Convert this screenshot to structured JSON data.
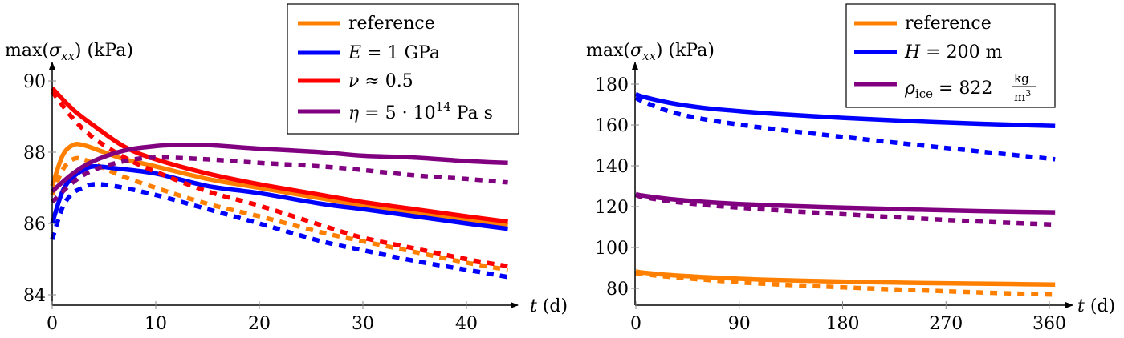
{
  "chart_data": [
    {
      "type": "line",
      "title": "",
      "ylabel": "max(σ_xx) (kPa)",
      "xlabel": "t (d)",
      "xlim": [
        0,
        44
      ],
      "ylim": [
        83.7,
        90.3
      ],
      "x_ticks": [
        0,
        10,
        20,
        30,
        40
      ],
      "y_ticks": [
        84,
        86,
        88,
        90
      ],
      "grid": false,
      "legend_position": "top-right",
      "legend_note": "solid and dashed lines share colour per case",
      "series": [
        {
          "name": "reference",
          "color": "#ff8000",
          "style": "solid",
          "show_in_legend": true,
          "x": [
            0,
            1,
            2,
            3,
            5,
            7,
            10,
            15,
            20,
            26,
            30,
            35,
            40,
            44
          ],
          "y": [
            87.05,
            87.9,
            88.2,
            88.2,
            88.0,
            87.8,
            87.6,
            87.25,
            87.0,
            86.7,
            86.5,
            86.3,
            86.1,
            85.95
          ]
        },
        {
          "name": "reference (dashed)",
          "color": "#ff8000",
          "style": "dashed",
          "show_in_legend": false,
          "x": [
            0,
            1,
            2,
            3,
            5,
            7,
            10,
            15,
            20,
            26,
            30,
            35,
            40,
            44
          ],
          "y": [
            86.8,
            87.5,
            87.8,
            87.8,
            87.55,
            87.3,
            87.0,
            86.55,
            86.2,
            85.75,
            85.5,
            85.2,
            84.9,
            84.7
          ]
        },
        {
          "name": "E = 1 GPa",
          "color": "#0000ff",
          "style": "solid",
          "show_in_legend": true,
          "x": [
            0,
            1,
            2,
            3,
            4,
            6,
            10,
            15,
            20,
            26,
            30,
            35,
            40,
            44
          ],
          "y": [
            86.0,
            86.9,
            87.3,
            87.5,
            87.6,
            87.55,
            87.4,
            87.05,
            86.85,
            86.55,
            86.4,
            86.2,
            86.0,
            85.85
          ]
        },
        {
          "name": "E = 1 GPa (dashed)",
          "color": "#0000ff",
          "style": "dashed",
          "show_in_legend": false,
          "x": [
            0,
            1,
            2,
            3,
            4,
            6,
            10,
            15,
            20,
            26,
            30,
            35,
            40,
            44
          ],
          "y": [
            85.55,
            86.45,
            86.85,
            87.0,
            87.1,
            87.05,
            86.8,
            86.4,
            86.0,
            85.5,
            85.25,
            84.95,
            84.7,
            84.5
          ]
        },
        {
          "name": "ν ≈ 0.5",
          "color": "#ff0000",
          "style": "solid",
          "show_in_legend": true,
          "x": [
            0,
            2,
            4,
            7,
            10,
            15,
            20,
            26,
            30,
            35,
            40,
            44
          ],
          "y": [
            89.8,
            89.2,
            88.75,
            88.15,
            87.8,
            87.4,
            87.1,
            86.8,
            86.6,
            86.4,
            86.2,
            86.05
          ]
        },
        {
          "name": "ν ≈ 0.5 (dashed)",
          "color": "#ff0000",
          "style": "dashed",
          "show_in_legend": false,
          "x": [
            0,
            2,
            4,
            7,
            10,
            15,
            20,
            26,
            30,
            35,
            40,
            44
          ],
          "y": [
            89.7,
            88.95,
            88.4,
            87.85,
            87.45,
            86.9,
            86.5,
            85.95,
            85.6,
            85.3,
            85.0,
            84.8
          ]
        },
        {
          "name": "η = 5·10^14 Pa s",
          "color": "#800080",
          "style": "solid",
          "show_in_legend": true,
          "x": [
            0,
            2,
            4,
            7,
            10,
            12,
            15,
            20,
            26,
            30,
            35,
            40,
            44
          ],
          "y": [
            86.9,
            87.4,
            87.75,
            88.05,
            88.17,
            88.2,
            88.2,
            88.1,
            88.0,
            87.9,
            87.85,
            87.75,
            87.7
          ]
        },
        {
          "name": "η = 5·10^14 Pa s (dashed)",
          "color": "#800080",
          "style": "dashed",
          "show_in_legend": false,
          "x": [
            0,
            2,
            4,
            7,
            10,
            15,
            20,
            26,
            30,
            35,
            40,
            44
          ],
          "y": [
            86.6,
            87.15,
            87.5,
            87.75,
            87.85,
            87.8,
            87.7,
            87.6,
            87.5,
            87.35,
            87.25,
            87.15
          ]
        }
      ],
      "legend_entries": [
        {
          "label": "reference",
          "color": "#ff8000"
        },
        {
          "label": "E = 1 GPa",
          "color": "#0000ff"
        },
        {
          "label": "ν ≈ 0.5",
          "color": "#ff0000"
        },
        {
          "label": "η = 5 · 10^14 Pa s",
          "color": "#800080"
        }
      ]
    },
    {
      "type": "line",
      "title": "",
      "ylabel": "max(σ_xx) (kPa)",
      "xlabel": "t (d)",
      "xlim": [
        0,
        365
      ],
      "ylim": [
        72,
        190
      ],
      "x_ticks": [
        0,
        90,
        180,
        270,
        360
      ],
      "y_ticks": [
        80,
        100,
        120,
        140,
        160,
        180
      ],
      "grid": false,
      "legend_position": "top-right",
      "series": [
        {
          "name": "reference",
          "color": "#ff8000",
          "style": "solid",
          "show_in_legend": true,
          "x": [
            0,
            5,
            30,
            60,
            90,
            120,
            180,
            240,
            300,
            365
          ],
          "y": [
            88.5,
            87.8,
            86.5,
            85.5,
            84.7,
            84.1,
            83.3,
            82.7,
            82.3,
            81.9
          ]
        },
        {
          "name": "reference (dashed)",
          "color": "#ff8000",
          "style": "dashed",
          "show_in_legend": false,
          "x": [
            0,
            5,
            30,
            60,
            90,
            120,
            180,
            240,
            300,
            365
          ],
          "y": [
            87.5,
            87.0,
            85.6,
            84.2,
            83.0,
            82.0,
            80.5,
            79.2,
            78.0,
            76.9
          ]
        },
        {
          "name": "H = 200 m",
          "color": "#0000ff",
          "style": "solid",
          "show_in_legend": true,
          "x": [
            0,
            5,
            30,
            60,
            90,
            120,
            180,
            240,
            300,
            365
          ],
          "y": [
            175.3,
            174.0,
            170.8,
            168.3,
            166.8,
            165.5,
            163.5,
            161.9,
            160.6,
            159.5
          ]
        },
        {
          "name": "H = 200 m (dashed)",
          "color": "#0000ff",
          "style": "dashed",
          "show_in_legend": false,
          "x": [
            0,
            5,
            30,
            60,
            90,
            120,
            180,
            240,
            300,
            365
          ],
          "y": [
            173.5,
            171.8,
            166.5,
            162.8,
            160.2,
            158.0,
            154.2,
            150.5,
            147.0,
            143.2
          ]
        },
        {
          "name": "ρ_ice = 822 kg/m³",
          "color": "#800080",
          "style": "solid",
          "show_in_legend": true,
          "x": [
            0,
            5,
            30,
            60,
            90,
            120,
            180,
            240,
            300,
            365
          ],
          "y": [
            126.3,
            125.5,
            123.7,
            122.3,
            121.3,
            120.6,
            119.5,
            118.6,
            117.8,
            117.2
          ]
        },
        {
          "name": "ρ_ice = 822 kg/m³ (dashed)",
          "color": "#800080",
          "style": "dashed",
          "show_in_legend": false,
          "x": [
            0,
            5,
            30,
            60,
            90,
            120,
            180,
            240,
            300,
            365
          ],
          "y": [
            125.8,
            124.8,
            122.6,
            120.8,
            119.5,
            118.3,
            116.3,
            114.4,
            112.7,
            111.2
          ]
        }
      ],
      "legend_entries": [
        {
          "label": "reference",
          "color": "#ff8000"
        },
        {
          "label": "H = 200 m",
          "color": "#0000ff"
        },
        {
          "label": "ρ_ice = 822 kg/m³",
          "color": "#800080"
        }
      ]
    }
  ],
  "labels": {
    "left": {
      "ylabel_prefix": "max(",
      "ylabel_sigma": "σ",
      "ylabel_sub": "xx",
      "ylabel_suffix": ") (kPa)",
      "xlabel_var": "t",
      "xlabel_unit": " (d)",
      "legend": [
        {
          "parts": [
            "reference"
          ]
        },
        {
          "var": "E",
          "rest": " = 1 GPa"
        },
        {
          "var": "ν",
          "rest": " ≈ 0.5"
        },
        {
          "var": "η",
          "rest": " = 5 · 10",
          "sup": "14",
          "tail": " Pa s"
        }
      ]
    },
    "right": {
      "ylabel_prefix": "max(",
      "ylabel_sigma": "σ",
      "ylabel_sub": "xx",
      "ylabel_suffix": ") (kPa)",
      "xlabel_var": "t",
      "xlabel_unit": " (d)",
      "legend_ref": "reference",
      "legend_H_var": "H",
      "legend_H_rest": " = 200 m",
      "legend_rho_var": "ρ",
      "legend_rho_sub": "ice",
      "legend_rho_rest": " = 822",
      "legend_rho_num": "kg",
      "legend_rho_den": "m",
      "legend_rho_den_sup": "3"
    }
  }
}
